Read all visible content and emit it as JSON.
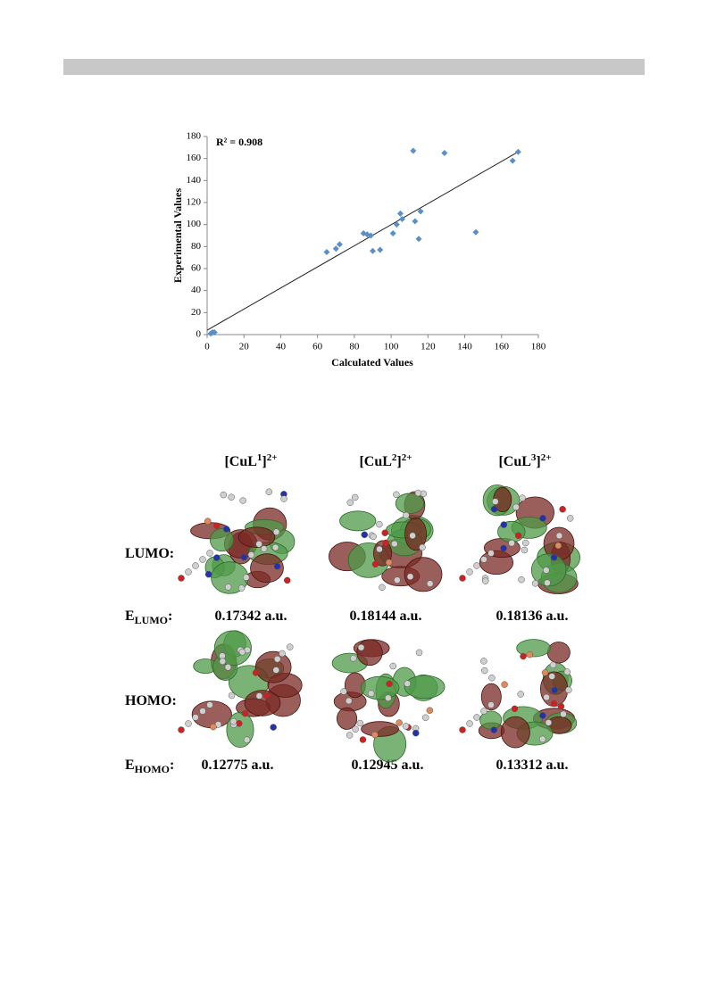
{
  "chart_data": {
    "type": "scatter",
    "annotation": "R² = 0.908",
    "x_label": "Calculated Values",
    "y_label": "Experimental Values",
    "color": "#5b8fc7",
    "x": [
      2,
      3,
      4,
      65,
      70,
      72,
      85,
      87,
      89,
      90,
      94,
      101,
      103,
      105,
      106,
      112,
      113,
      115,
      116,
      129,
      146,
      166,
      169
    ],
    "values": [
      1,
      2,
      2,
      75,
      78,
      82,
      92,
      91,
      90,
      76,
      77,
      92,
      100,
      110,
      105,
      167,
      103,
      87,
      112,
      165,
      93,
      158,
      166
    ],
    "trendline": {
      "x": [
        0,
        170
      ],
      "y": [
        4,
        167
      ]
    },
    "xlim": [
      0,
      180
    ],
    "xticks": [
      0,
      20,
      40,
      60,
      80,
      100,
      120,
      140,
      160,
      180
    ],
    "ylim": [
      0,
      180
    ],
    "yticks": [
      0,
      20,
      40,
      60,
      80,
      100,
      120,
      140,
      160,
      180
    ],
    "grid": false
  },
  "figure": {
    "columns": [
      {
        "base": "[CuL",
        "sub": "1",
        "close": "]",
        "charge": "2+"
      },
      {
        "base": "[CuL",
        "sub": "2",
        "close": "]",
        "charge": "2+"
      },
      {
        "base": "[CuL",
        "sub": "3",
        "close": "]",
        "charge": "2+"
      }
    ],
    "rows": [
      {
        "label": "LUMO:",
        "energy_symbol": "E",
        "energy_subscript": "LUMO",
        "energy_colon": ":",
        "energies": [
          "0.17342 a.u.",
          "0.18144 a.u.",
          "0.18136 a.u."
        ]
      },
      {
        "label": "HOMO:",
        "energy_symbol": "E",
        "energy_subscript": "HOMO",
        "energy_colon": ":",
        "energies": [
          "0.12775 a.u.",
          "0.12945 a.u.",
          "0.13312 a.u."
        ]
      }
    ]
  }
}
